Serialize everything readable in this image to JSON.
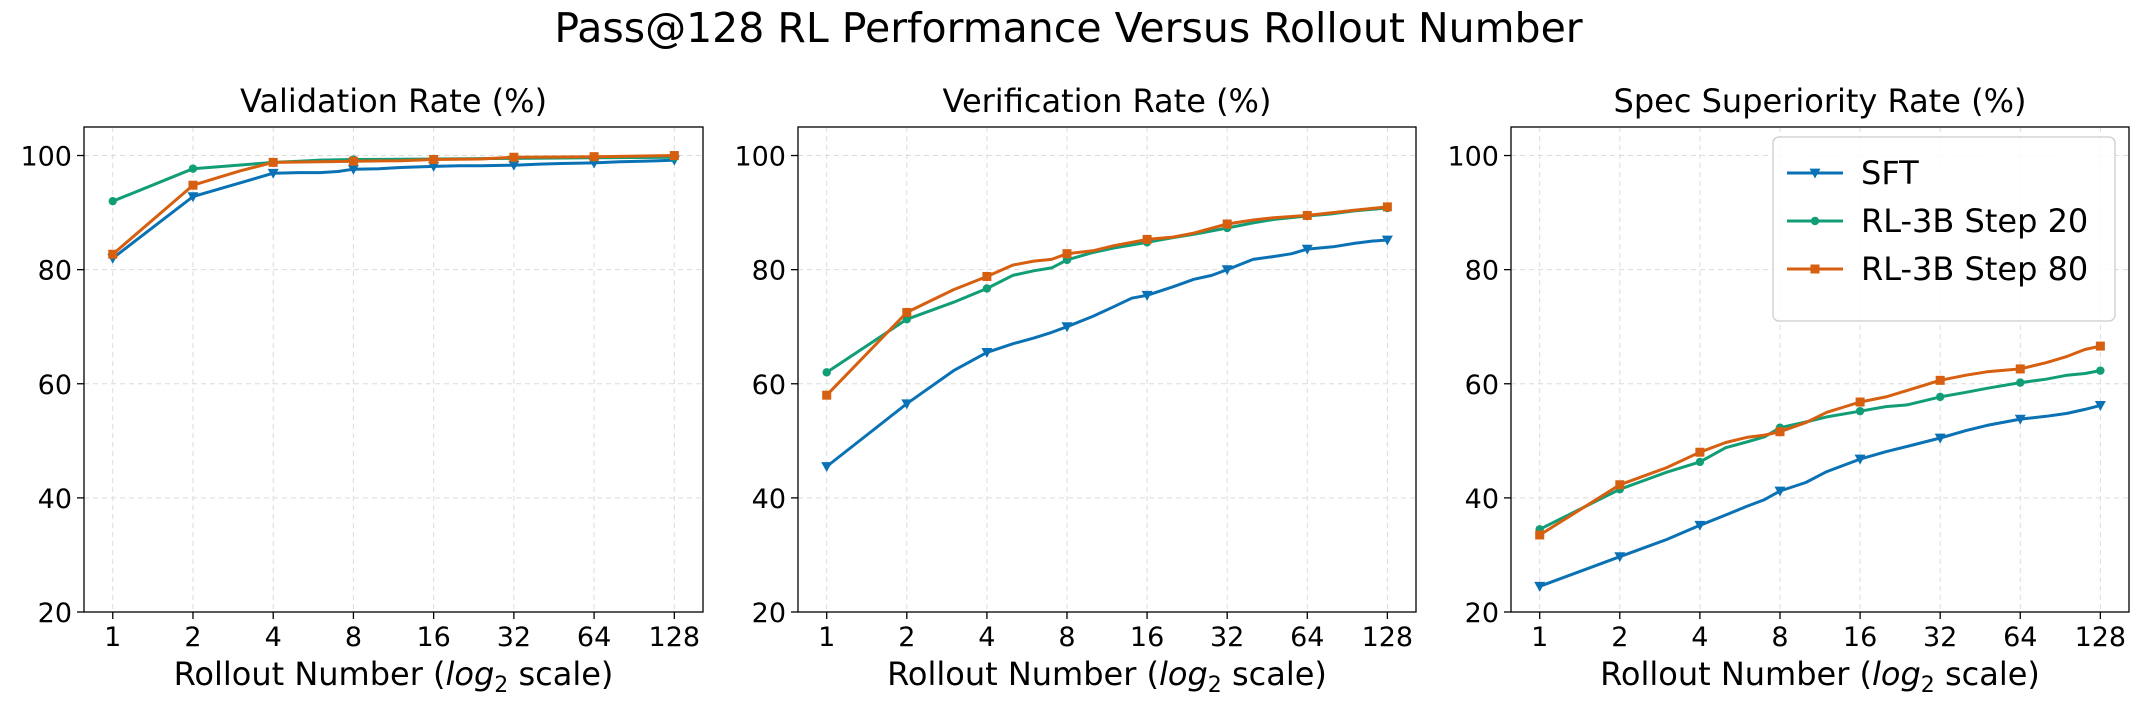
{
  "figure": {
    "title": "Pass@128 RL Performance Versus Rollout Number"
  },
  "chart_data": [
    {
      "type": "line",
      "title": "Validation Rate (%)",
      "xlabel": "Rollout Number (log2 scale)",
      "xlabel_parts": {
        "pre": "Rollout Number (",
        "log": "log",
        "sub": "2",
        "post": " scale)"
      },
      "ylabel": "",
      "x_scale": "log2",
      "x_ticks": [
        1,
        2,
        4,
        8,
        16,
        32,
        64,
        128
      ],
      "x_tick_labels": [
        "1",
        "2",
        "4",
        "8",
        "16",
        "32",
        "64",
        "128"
      ],
      "y_ticks": [
        20,
        40,
        60,
        80,
        100
      ],
      "y_tick_labels": [
        "20",
        "40",
        "60",
        "80",
        "100"
      ],
      "xlim": [
        0.78,
        164
      ],
      "ylim": [
        20,
        105
      ],
      "grid": true,
      "legend": "none",
      "series": [
        {
          "name": "SFT",
          "color": "#0a72b4",
          "marker": "triangle-down",
          "x": [
            1,
            2,
            4,
            5,
            6,
            7,
            8,
            10,
            12,
            16,
            20,
            24,
            32,
            40,
            48,
            64,
            80,
            96,
            112,
            128
          ],
          "y": [
            82,
            92.8,
            96.9,
            97,
            97,
            97.2,
            97.6,
            97.7,
            97.9,
            98.1,
            98.2,
            98.2,
            98.3,
            98.5,
            98.6,
            98.7,
            98.9,
            99.0,
            99.1,
            99.2
          ]
        },
        {
          "name": "RL-3B Step 20",
          "color": "#119e77",
          "marker": "circle",
          "x": [
            1,
            2,
            4,
            5,
            6,
            8,
            16,
            32,
            64,
            128
          ],
          "y": [
            92,
            97.7,
            98.8,
            99.0,
            99.2,
            99.3,
            99.4,
            99.5,
            99.6,
            99.7
          ]
        },
        {
          "name": "RL-3B Step 80",
          "color": "#d65f10",
          "marker": "square",
          "x": [
            1,
            2,
            3,
            4,
            6,
            8,
            12,
            16,
            24,
            32,
            64,
            128
          ],
          "y": [
            82.7,
            94.8,
            97.3,
            98.8,
            98.9,
            99.0,
            99.1,
            99.3,
            99.4,
            99.7,
            99.8,
            100
          ]
        }
      ]
    },
    {
      "type": "line",
      "title": "Verification Rate (%)",
      "xlabel": "Rollout Number (log2 scale)",
      "xlabel_parts": {
        "pre": "Rollout Number (",
        "log": "log",
        "sub": "2",
        "post": " scale)"
      },
      "ylabel": "",
      "x_scale": "log2",
      "x_ticks": [
        1,
        2,
        4,
        8,
        16,
        32,
        64,
        128
      ],
      "x_tick_labels": [
        "1",
        "2",
        "4",
        "8",
        "16",
        "32",
        "64",
        "128"
      ],
      "y_ticks": [
        20,
        40,
        60,
        80,
        100
      ],
      "y_tick_labels": [
        "20",
        "40",
        "60",
        "80",
        "100"
      ],
      "xlim": [
        0.78,
        164
      ],
      "ylim": [
        20,
        105
      ],
      "grid": true,
      "legend": "none",
      "series": [
        {
          "name": "SFT",
          "color": "#0a72b4",
          "marker": "triangle-down",
          "x": [
            1,
            2,
            3,
            4,
            5,
            6,
            7,
            8,
            10,
            12,
            14,
            16,
            20,
            24,
            28,
            32,
            40,
            48,
            56,
            64,
            80,
            96,
            112,
            128
          ],
          "y": [
            45.5,
            56.5,
            62.3,
            65.5,
            67.0,
            68.0,
            69.0,
            70.0,
            71.8,
            73.5,
            75.0,
            75.5,
            77.0,
            78.3,
            79.0,
            80.0,
            81.8,
            82.3,
            82.8,
            83.6,
            84.0,
            84.6,
            85.0,
            85.2
          ]
        },
        {
          "name": "RL-3B Step 20",
          "color": "#119e77",
          "marker": "circle",
          "x": [
            1,
            2,
            3,
            4,
            5,
            6,
            7,
            8,
            10,
            12,
            16,
            20,
            24,
            32,
            40,
            48,
            64,
            80,
            96,
            128
          ],
          "y": [
            62.0,
            71.3,
            74.3,
            76.7,
            79.0,
            79.8,
            80.3,
            81.7,
            83.0,
            83.8,
            84.8,
            85.6,
            86.2,
            87.3,
            88.2,
            88.8,
            89.4,
            89.8,
            90.3,
            90.8
          ]
        },
        {
          "name": "RL-3B Step 80",
          "color": "#d65f10",
          "marker": "square",
          "x": [
            1,
            2,
            3,
            4,
            5,
            6,
            7,
            8,
            10,
            12,
            16,
            20,
            24,
            32,
            40,
            48,
            64,
            80,
            96,
            128
          ],
          "y": [
            58.0,
            72.5,
            76.5,
            78.8,
            80.8,
            81.5,
            81.8,
            82.8,
            83.3,
            84.2,
            85.3,
            85.7,
            86.4,
            88.0,
            88.7,
            89.1,
            89.5,
            90.0,
            90.4,
            91.0
          ]
        }
      ]
    },
    {
      "type": "line",
      "title": "Spec Superiority Rate (%)",
      "xlabel": "Rollout Number (log2 scale)",
      "xlabel_parts": {
        "pre": "Rollout Number (",
        "log": "log",
        "sub": "2",
        "post": " scale)"
      },
      "ylabel": "",
      "x_scale": "log2",
      "x_ticks": [
        1,
        2,
        4,
        8,
        16,
        32,
        64,
        128
      ],
      "x_tick_labels": [
        "1",
        "2",
        "4",
        "8",
        "16",
        "32",
        "64",
        "128"
      ],
      "y_ticks": [
        20,
        40,
        60,
        80,
        100
      ],
      "y_tick_labels": [
        "20",
        "40",
        "60",
        "80",
        "100"
      ],
      "xlim": [
        0.78,
        164
      ],
      "ylim": [
        20,
        105
      ],
      "grid": true,
      "legend": "top-right",
      "series": [
        {
          "name": "SFT",
          "color": "#0a72b4",
          "marker": "triangle-down",
          "x": [
            1,
            2,
            3,
            4,
            5,
            6,
            7,
            8,
            10,
            12,
            16,
            20,
            24,
            32,
            40,
            48,
            64,
            80,
            96,
            112,
            128
          ],
          "y": [
            24.5,
            29.7,
            32.7,
            35.2,
            37.0,
            38.5,
            39.7,
            41.2,
            42.7,
            44.6,
            46.8,
            48.1,
            49.0,
            50.5,
            51.8,
            52.7,
            53.8,
            54.3,
            54.8,
            55.5,
            56.2
          ]
        },
        {
          "name": "RL-3B Step 20",
          "color": "#119e77",
          "marker": "circle",
          "x": [
            1,
            2,
            3,
            4,
            5,
            6,
            7,
            8,
            10,
            12,
            16,
            20,
            24,
            32,
            40,
            48,
            64,
            80,
            96,
            112,
            128
          ],
          "y": [
            34.5,
            41.5,
            44.5,
            46.3,
            48.8,
            49.8,
            50.7,
            52.3,
            53.3,
            54.2,
            55.2,
            56.0,
            56.3,
            57.7,
            58.5,
            59.2,
            60.2,
            60.8,
            61.5,
            61.8,
            62.3
          ]
        },
        {
          "name": "RL-3B Step 80",
          "color": "#d65f10",
          "marker": "square",
          "x": [
            1,
            2,
            3,
            4,
            5,
            6,
            7,
            8,
            10,
            12,
            16,
            20,
            24,
            32,
            40,
            48,
            64,
            80,
            96,
            112,
            128
          ],
          "y": [
            33.5,
            42.3,
            45.3,
            48.0,
            49.7,
            50.6,
            51.0,
            51.6,
            53.2,
            55.0,
            56.8,
            57.7,
            58.8,
            60.6,
            61.5,
            62.1,
            62.6,
            63.7,
            64.8,
            66.0,
            66.6
          ]
        }
      ]
    }
  ]
}
